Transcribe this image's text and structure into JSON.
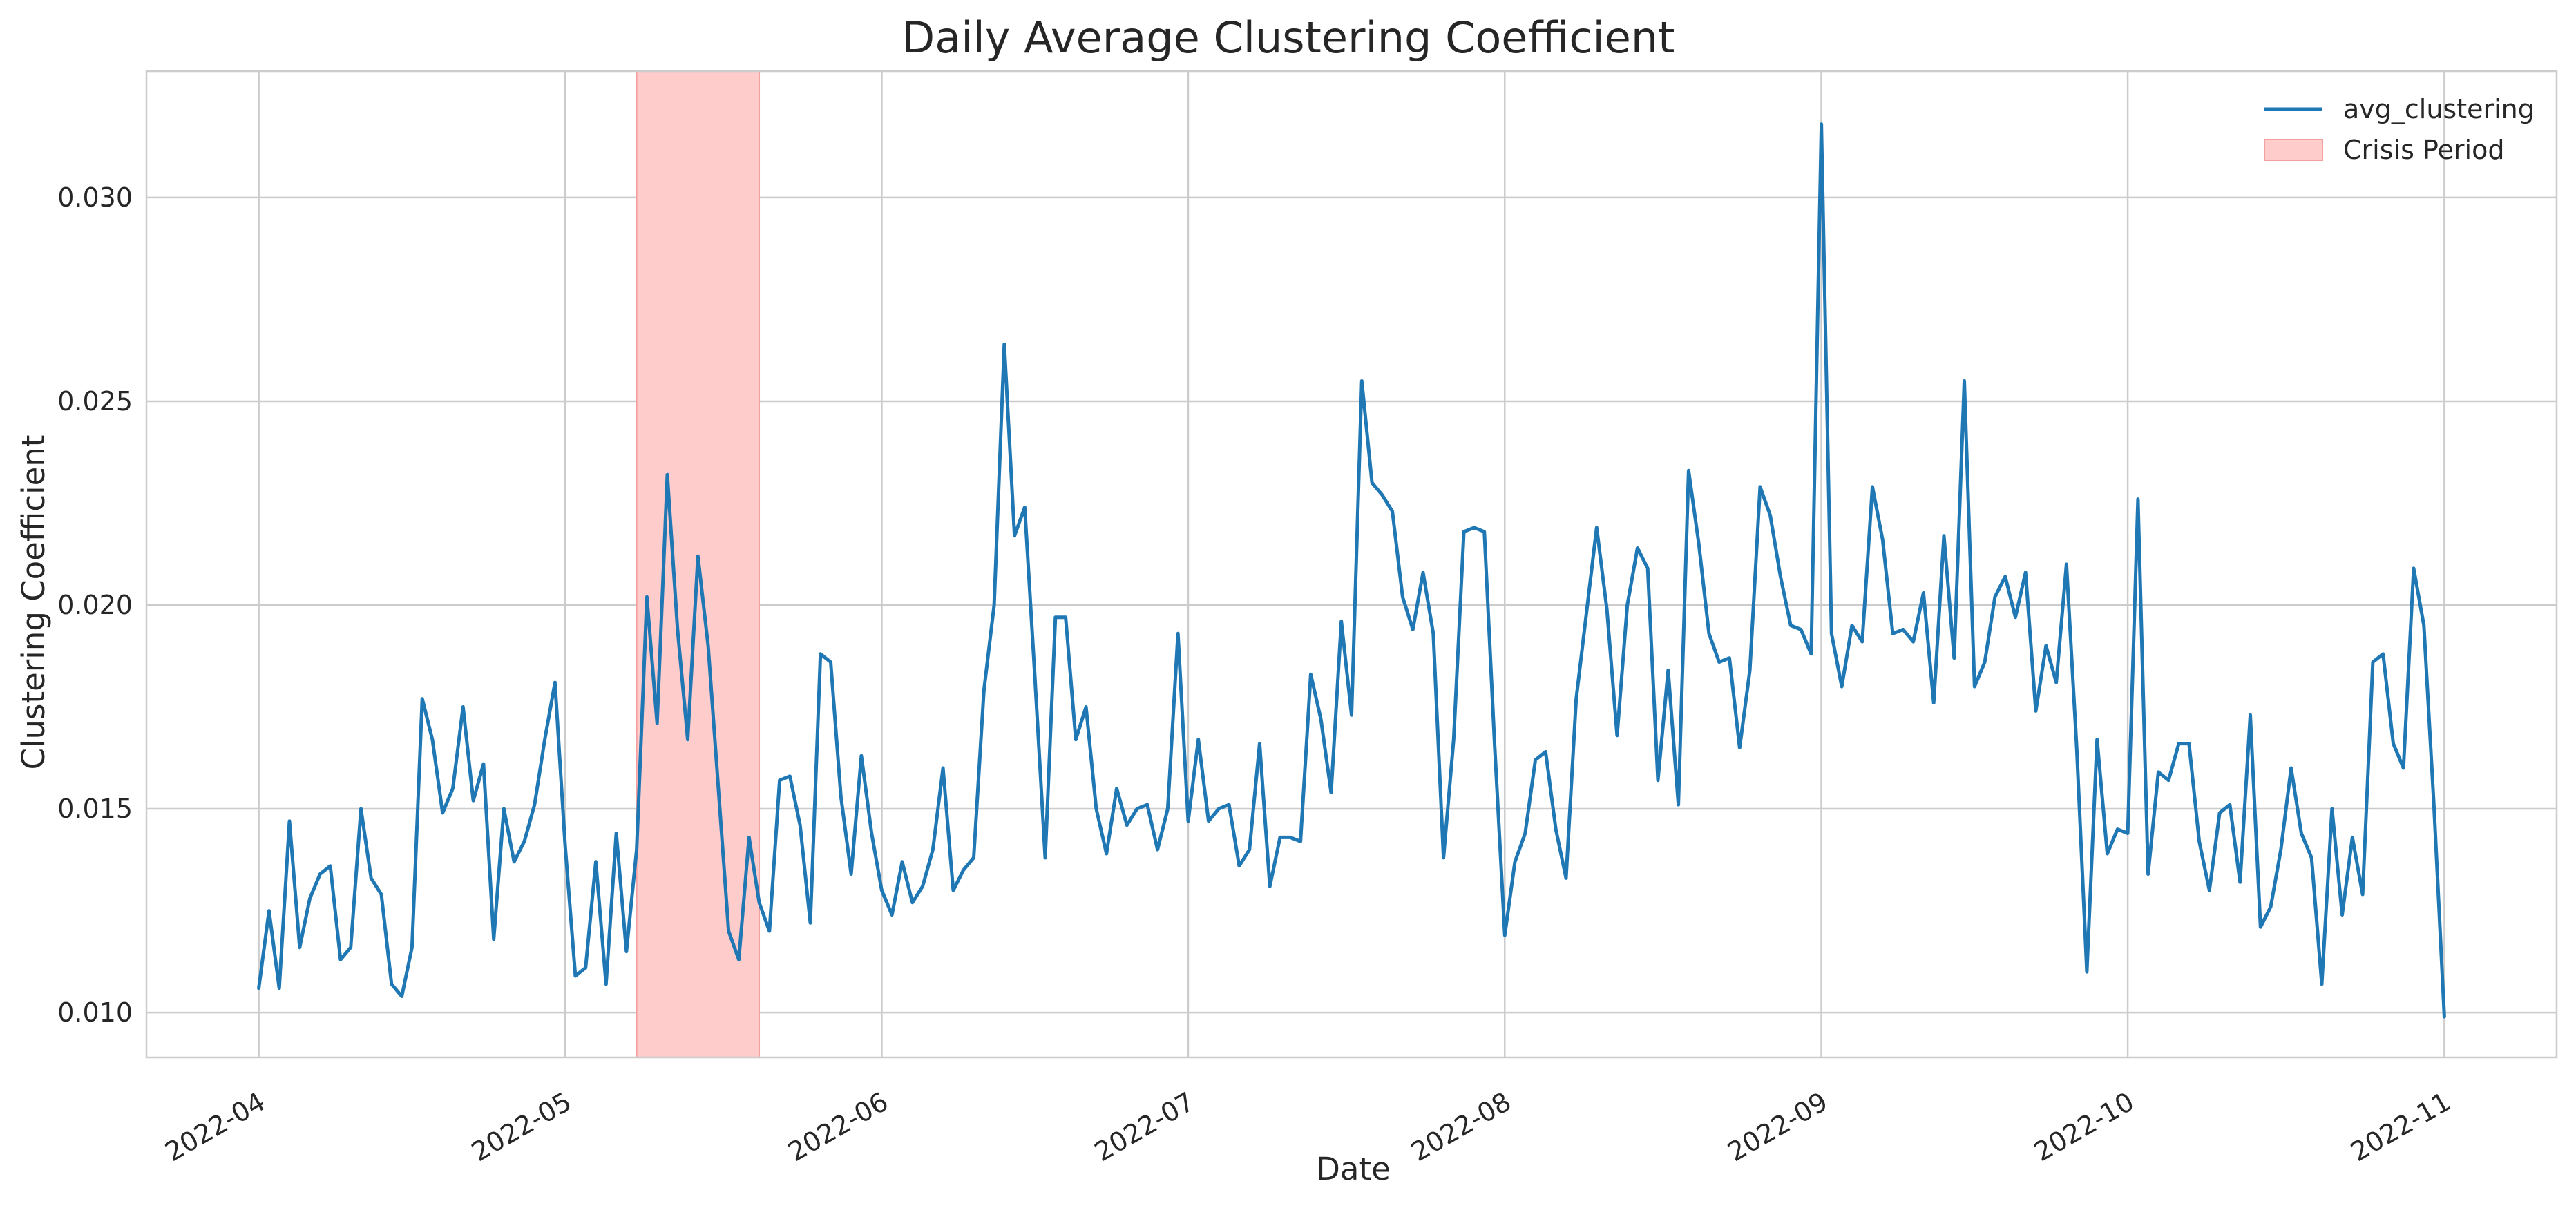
{
  "chart_data": {
    "type": "line",
    "title": "Daily Average Clustering Coefficient",
    "xlabel": "Date",
    "ylabel": "Clustering Coefficient",
    "x_start": "2022-04-01",
    "x_range": [
      "2022-03-21",
      "2022-11-12"
    ],
    "ylim": [
      0.0089,
      0.0331
    ],
    "grid": true,
    "legend_position": "top-right",
    "x_ticks": [
      "2022-04",
      "2022-05",
      "2022-06",
      "2022-07",
      "2022-08",
      "2022-09",
      "2022-10",
      "2022-11"
    ],
    "y_ticks": [
      "0.010",
      "0.015",
      "0.020",
      "0.025",
      "0.030"
    ],
    "shaded_regions": [
      {
        "name": "Crisis Period",
        "start": "2022-05-08",
        "end": "2022-05-20",
        "color": "#ffcccc",
        "edge_color": "#f4a0a0"
      }
    ],
    "series": [
      {
        "name": "avg_clustering",
        "color": "#1f77b4",
        "values": [
          0.0106,
          0.0125,
          0.0106,
          0.0147,
          0.0116,
          0.0128,
          0.0134,
          0.0136,
          0.0113,
          0.0116,
          0.015,
          0.0133,
          0.0129,
          0.0107,
          0.0104,
          0.0116,
          0.0177,
          0.0167,
          0.0149,
          0.0155,
          0.0175,
          0.0152,
          0.0161,
          0.0118,
          0.015,
          0.0137,
          0.0142,
          0.0151,
          0.0167,
          0.0181,
          0.0141,
          0.0109,
          0.0111,
          0.0137,
          0.0107,
          0.0144,
          0.0115,
          0.014,
          0.0202,
          0.0171,
          0.0232,
          0.0194,
          0.0167,
          0.0212,
          0.019,
          0.0155,
          0.012,
          0.0113,
          0.0143,
          0.0127,
          0.012,
          0.0157,
          0.0158,
          0.0146,
          0.0122,
          0.0188,
          0.0186,
          0.0153,
          0.0134,
          0.0163,
          0.0144,
          0.013,
          0.0124,
          0.0137,
          0.0127,
          0.0131,
          0.014,
          0.016,
          0.013,
          0.0135,
          0.0138,
          0.0179,
          0.02,
          0.0264,
          0.0217,
          0.0224,
          0.0182,
          0.0138,
          0.0197,
          0.0197,
          0.0167,
          0.0175,
          0.015,
          0.0139,
          0.0155,
          0.0146,
          0.015,
          0.0151,
          0.014,
          0.015,
          0.0193,
          0.0147,
          0.0167,
          0.0147,
          0.015,
          0.0151,
          0.0136,
          0.014,
          0.0166,
          0.0131,
          0.0143,
          0.0143,
          0.0142,
          0.0183,
          0.0172,
          0.0154,
          0.0196,
          0.0173,
          0.0255,
          0.023,
          0.0227,
          0.0223,
          0.0202,
          0.0194,
          0.0208,
          0.0193,
          0.0138,
          0.0167,
          0.0218,
          0.0219,
          0.0218,
          0.0166,
          0.0119,
          0.0137,
          0.0144,
          0.0162,
          0.0164,
          0.0145,
          0.0133,
          0.0177,
          0.0198,
          0.0219,
          0.0199,
          0.0168,
          0.02,
          0.0214,
          0.0209,
          0.0157,
          0.0184,
          0.0151,
          0.0233,
          0.0215,
          0.0193,
          0.0186,
          0.0187,
          0.0165,
          0.0184,
          0.0229,
          0.0222,
          0.0207,
          0.0195,
          0.0194,
          0.0188,
          0.0318,
          0.0193,
          0.018,
          0.0195,
          0.0191,
          0.0229,
          0.0216,
          0.0193,
          0.0194,
          0.0191,
          0.0203,
          0.0176,
          0.0217,
          0.0187,
          0.0255,
          0.018,
          0.0186,
          0.0202,
          0.0207,
          0.0197,
          0.0208,
          0.0174,
          0.019,
          0.0181,
          0.021,
          0.0165,
          0.011,
          0.0167,
          0.0139,
          0.0145,
          0.0144,
          0.0226,
          0.0134,
          0.0159,
          0.0157,
          0.0166,
          0.0166,
          0.0142,
          0.013,
          0.0149,
          0.0151,
          0.0132,
          0.0173,
          0.0121,
          0.0126,
          0.014,
          0.016,
          0.0144,
          0.0138,
          0.0107,
          0.015,
          0.0124,
          0.0143,
          0.0129,
          0.0186,
          0.0188,
          0.0166,
          0.016,
          0.0209,
          0.0195,
          0.015,
          0.0099
        ]
      }
    ]
  }
}
